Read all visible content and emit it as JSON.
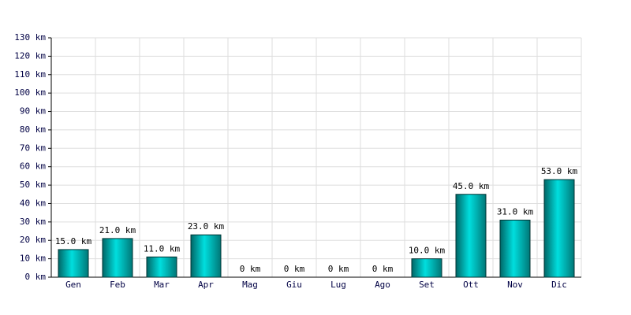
{
  "chart_data": {
    "type": "bar",
    "categories": [
      "Gen",
      "Feb",
      "Mar",
      "Apr",
      "Mag",
      "Giu",
      "Lug",
      "Ago",
      "Set",
      "Ott",
      "Nov",
      "Dic"
    ],
    "values": [
      15,
      21,
      11,
      23,
      0,
      0,
      0,
      0,
      10,
      45,
      31,
      53
    ],
    "value_labels": [
      "15.0 km",
      "21.0 km",
      "11.0 km",
      "23.0 km",
      "0 km",
      "0 km",
      "0 km",
      "0 km",
      "10.0 km",
      "45.0 km",
      "31.0 km",
      "53.0 km"
    ],
    "color": "#00dede",
    "ylim": [
      0,
      130
    ],
    "yticks": [
      {
        "value": 0,
        "label": "0 km"
      },
      {
        "value": 10,
        "label": "10 km"
      },
      {
        "value": 20,
        "label": "20 km"
      },
      {
        "value": 30,
        "label": "30 km"
      },
      {
        "value": 40,
        "label": "40 km"
      },
      {
        "value": 50,
        "label": "50 km"
      },
      {
        "value": 60,
        "label": "60 km"
      },
      {
        "value": 70,
        "label": "70 km"
      },
      {
        "value": 80,
        "label": "80 km"
      },
      {
        "value": 90,
        "label": "90 km"
      },
      {
        "value": 100,
        "label": "100 km"
      },
      {
        "value": 110,
        "label": "110 km"
      },
      {
        "value": 120,
        "label": "120 km"
      },
      {
        "value": 130,
        "label": "130 km"
      }
    ],
    "grid": true
  }
}
